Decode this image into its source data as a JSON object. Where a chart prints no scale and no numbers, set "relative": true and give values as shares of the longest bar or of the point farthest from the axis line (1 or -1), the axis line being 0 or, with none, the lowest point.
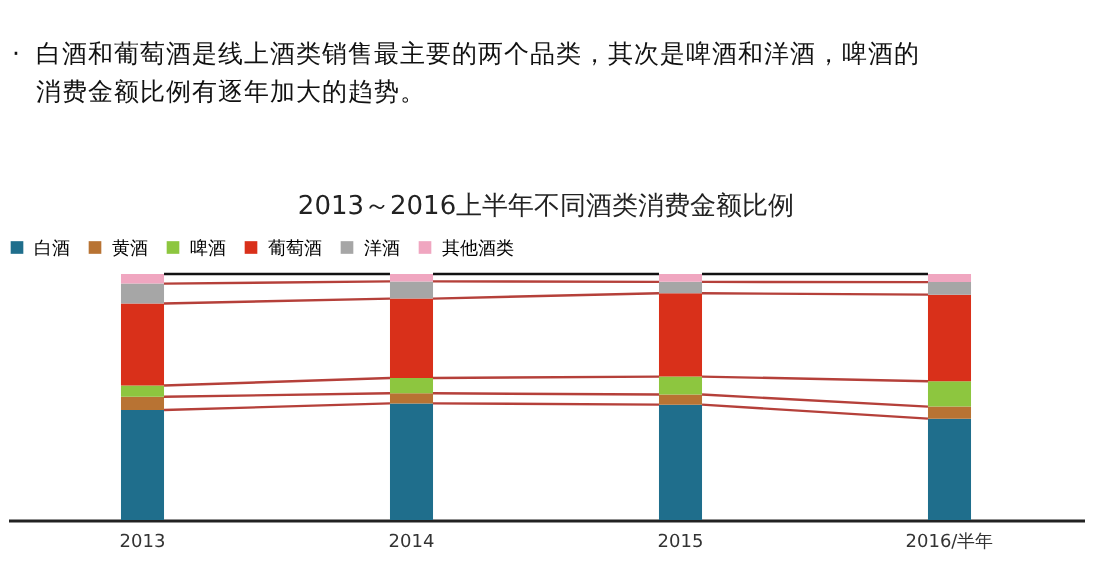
{
  "chart_data": {
    "type": "bar",
    "stacked": true,
    "relative": true,
    "legend": "top",
    "grid": false,
    "title": "2013～2016上半年不同酒类消费金额比例",
    "annotations": [
      "·",
      "白酒和葡萄酒是线上酒类销售最主要的两个品类，其次是啤酒和洋酒，啤酒的消费金额比例有逐年加大的趋势。"
    ],
    "categories": [
      "2013",
      "2014",
      "2015",
      "2016/半年"
    ],
    "series": [
      {
        "name": "白酒",
        "color": "#1f6e8c",
        "values": [
          0.447,
          0.474,
          0.469,
          0.412
        ]
      },
      {
        "name": "黄酒",
        "color": "#b87333",
        "values": [
          0.054,
          0.041,
          0.041,
          0.049
        ]
      },
      {
        "name": "啤酒",
        "color": "#8dc63f",
        "values": [
          0.046,
          0.062,
          0.073,
          0.103
        ]
      },
      {
        "name": "葡萄酒",
        "color": "#d9301a",
        "values": [
          0.333,
          0.323,
          0.339,
          0.352
        ]
      },
      {
        "name": "洋酒",
        "color": "#a6a6a6",
        "values": [
          0.081,
          0.07,
          0.046,
          0.051
        ]
      },
      {
        "name": "其他酒类",
        "color": "#f0a6c0",
        "values": [
          0.039,
          0.03,
          0.032,
          0.033
        ]
      }
    ]
  }
}
